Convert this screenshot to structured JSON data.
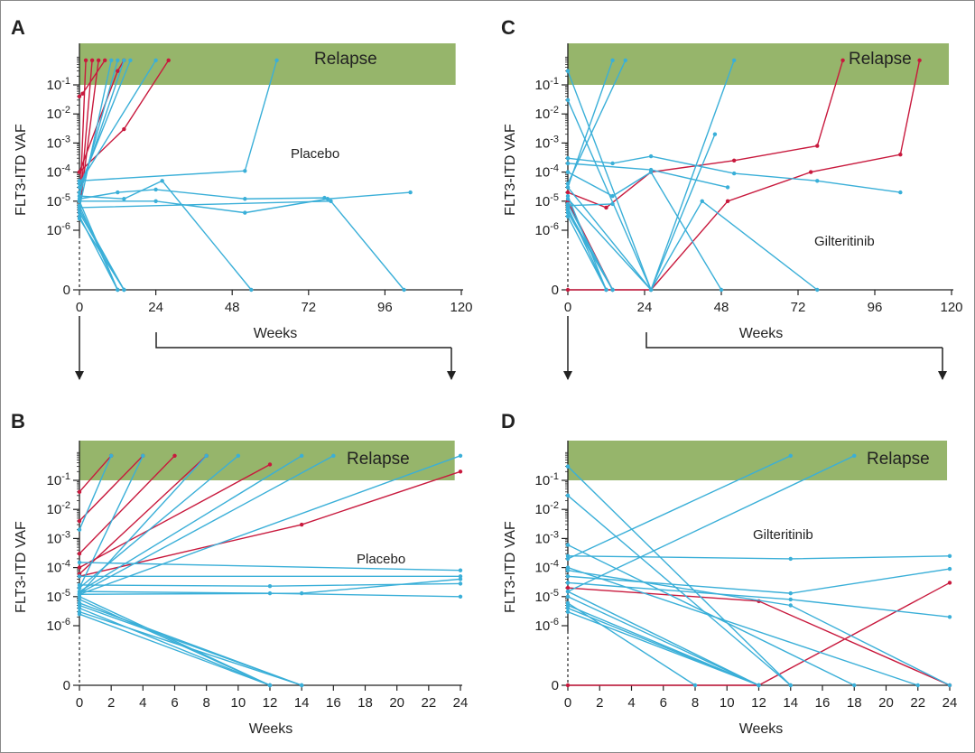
{
  "colors": {
    "placebo_line": "#3aafd8",
    "relapse_line": "#c8193d",
    "relapse_band": "#96b56b",
    "axis": "#222222"
  },
  "chart_data": [
    {
      "id": "A",
      "type": "line",
      "panel_label": "A",
      "arm": "Placebo",
      "band_label": "Relapse",
      "xlabel": "Weeks",
      "ylabel": "FLT3-ITD VAF",
      "xlim": [
        0,
        120
      ],
      "xticks": [
        "0",
        "24",
        "48",
        "72",
        "96",
        "120"
      ],
      "y_scale": "log10 with 0 at baseline",
      "yticks": [
        "0",
        "10-6",
        "10-5",
        "10-4",
        "10-3",
        "10-2",
        "10-1"
      ],
      "relapse_band": [
        0.1,
        1
      ],
      "series": [
        {
          "status": "relapse",
          "x": [
            0,
            2
          ],
          "y": [
            3e-06,
            0.7
          ]
        },
        {
          "status": "relapse",
          "x": [
            0,
            4
          ],
          "y": [
            4e-06,
            0.7
          ]
        },
        {
          "status": "relapse",
          "x": [
            0,
            6
          ],
          "y": [
            5e-06,
            0.7
          ]
        },
        {
          "status": "relapse",
          "x": [
            0,
            12,
            14
          ],
          "y": [
            0.0001,
            0.3,
            0.7
          ]
        },
        {
          "status": "relapse",
          "x": [
            0,
            14,
            28
          ],
          "y": [
            0.0001,
            0.003,
            0.7
          ]
        },
        {
          "status": "relapse",
          "x": [
            0,
            1,
            8
          ],
          "y": [
            0.04,
            0.05,
            0.7
          ]
        },
        {
          "status": "no relapse",
          "x": [
            0,
            10
          ],
          "y": [
            6e-06,
            0.7
          ]
        },
        {
          "status": "no relapse",
          "x": [
            0,
            12
          ],
          "y": [
            1.5e-05,
            0.7
          ]
        },
        {
          "status": "no relapse",
          "x": [
            0,
            14
          ],
          "y": [
            2e-05,
            0.7
          ]
        },
        {
          "status": "no relapse",
          "x": [
            0,
            16
          ],
          "y": [
            3e-05,
            0.7
          ]
        },
        {
          "status": "no relapse",
          "x": [
            0,
            24
          ],
          "y": [
            4e-05,
            0.7
          ]
        },
        {
          "status": "no relapse",
          "x": [
            0,
            52,
            62
          ],
          "y": [
            5e-05,
            0.00011,
            0.7
          ]
        },
        {
          "status": "no relapse",
          "x": [
            0,
            12,
            24,
            52,
            77
          ],
          "y": [
            1.2e-05,
            2e-05,
            2.5e-05,
            1.2e-05,
            1.3e-05
          ]
        },
        {
          "status": "no relapse",
          "x": [
            0,
            14,
            26,
            54
          ],
          "y": [
            1.5e-05,
            1.2e-05,
            5e-05,
            0
          ]
        },
        {
          "status": "no relapse",
          "x": [
            0,
            24,
            52,
            78,
            104
          ],
          "y": [
            1e-05,
            1e-05,
            4e-06,
            1.2e-05,
            2e-05
          ]
        },
        {
          "status": "no relapse",
          "x": [
            0,
            12
          ],
          "y": [
            1e-05,
            0
          ]
        },
        {
          "status": "no relapse",
          "x": [
            0,
            12
          ],
          "y": [
            7e-06,
            0
          ]
        },
        {
          "status": "no relapse",
          "x": [
            0,
            14
          ],
          "y": [
            5e-06,
            0
          ]
        },
        {
          "status": "no relapse",
          "x": [
            0,
            14
          ],
          "y": [
            4e-06,
            0
          ]
        },
        {
          "status": "no relapse",
          "x": [
            0,
            12
          ],
          "y": [
            3e-06,
            0
          ]
        },
        {
          "status": "no relapse",
          "x": [
            0,
            14
          ],
          "y": [
            2.5e-06,
            0
          ]
        },
        {
          "status": "no relapse",
          "x": [
            0,
            79,
            102
          ],
          "y": [
            6e-06,
            1e-05,
            0
          ]
        }
      ]
    },
    {
      "id": "B",
      "type": "line",
      "panel_label": "B",
      "arm": "Placebo",
      "band_label": "Relapse",
      "xlabel": "Weeks",
      "ylabel": "FLT3-ITD VAF",
      "xlim": [
        0,
        24
      ],
      "xticks": [
        "0",
        "2",
        "4",
        "6",
        "8",
        "10",
        "12",
        "14",
        "16",
        "18",
        "20",
        "22",
        "24"
      ],
      "y_scale": "log10 with 0 at baseline",
      "yticks": [
        "0",
        "10-6",
        "10-5",
        "10-4",
        "10-3",
        "10-2",
        "10-1"
      ],
      "relapse_band": [
        0.1,
        1
      ],
      "series": [
        {
          "status": "relapse",
          "x": [
            0,
            2
          ],
          "y": [
            0.04,
            0.7
          ]
        },
        {
          "status": "relapse",
          "x": [
            0,
            4
          ],
          "y": [
            0.004,
            0.7
          ]
        },
        {
          "status": "relapse",
          "x": [
            0,
            6
          ],
          "y": [
            0.0003,
            0.7
          ]
        },
        {
          "status": "relapse",
          "x": [
            0,
            8
          ],
          "y": [
            6e-05,
            0.7
          ]
        },
        {
          "status": "relapse",
          "x": [
            0,
            12
          ],
          "y": [
            0.0001,
            0.35
          ]
        },
        {
          "status": "relapse",
          "x": [
            0,
            14,
            24
          ],
          "y": [
            5e-05,
            0.003,
            0.2
          ]
        },
        {
          "status": "no relapse",
          "x": [
            0,
            2
          ],
          "y": [
            0.002,
            0.7
          ]
        },
        {
          "status": "no relapse",
          "x": [
            0,
            4
          ],
          "y": [
            2e-05,
            0.7
          ]
        },
        {
          "status": "no relapse",
          "x": [
            0,
            8
          ],
          "y": [
            1.2e-05,
            0.7
          ]
        },
        {
          "status": "no relapse",
          "x": [
            0,
            10
          ],
          "y": [
            2e-05,
            0.7
          ]
        },
        {
          "status": "no relapse",
          "x": [
            0,
            14
          ],
          "y": [
            1.5e-05,
            0.7
          ]
        },
        {
          "status": "no relapse",
          "x": [
            0,
            16
          ],
          "y": [
            1.3e-05,
            0.7
          ]
        },
        {
          "status": "no relapse",
          "x": [
            0,
            24
          ],
          "y": [
            1.2e-05,
            0.7
          ]
        },
        {
          "status": "no relapse",
          "x": [
            0,
            24
          ],
          "y": [
            0.00015,
            8e-05
          ]
        },
        {
          "status": "no relapse",
          "x": [
            0,
            24
          ],
          "y": [
            5e-05,
            5e-05
          ]
        },
        {
          "status": "no relapse",
          "x": [
            0,
            12,
            24
          ],
          "y": [
            2.5e-05,
            2.3e-05,
            2.8e-05
          ]
        },
        {
          "status": "no relapse",
          "x": [
            0,
            14,
            24
          ],
          "y": [
            1.2e-05,
            1.3e-05,
            4e-05
          ]
        },
        {
          "status": "no relapse",
          "x": [
            0,
            12,
            24
          ],
          "y": [
            1.5e-05,
            1.3e-05,
            1e-05
          ]
        },
        {
          "status": "no relapse",
          "x": [
            0,
            12
          ],
          "y": [
            1e-05,
            0
          ]
        },
        {
          "status": "no relapse",
          "x": [
            0,
            12
          ],
          "y": [
            8e-06,
            0
          ]
        },
        {
          "status": "no relapse",
          "x": [
            0,
            14
          ],
          "y": [
            6e-06,
            0
          ]
        },
        {
          "status": "no relapse",
          "x": [
            0,
            14
          ],
          "y": [
            5e-06,
            0
          ]
        },
        {
          "status": "no relapse",
          "x": [
            0,
            12
          ],
          "y": [
            4e-06,
            0
          ]
        },
        {
          "status": "no relapse",
          "x": [
            0,
            14
          ],
          "y": [
            3e-06,
            0
          ]
        },
        {
          "status": "no relapse",
          "x": [
            0,
            12
          ],
          "y": [
            2.5e-06,
            0
          ]
        }
      ]
    },
    {
      "id": "C",
      "type": "line",
      "panel_label": "C",
      "arm": "Gilteritinib",
      "band_label": "Relapse",
      "xlabel": "Weeks",
      "ylabel": "FLT3-ITD VAF",
      "xlim": [
        0,
        120
      ],
      "xticks": [
        "0",
        "24",
        "48",
        "72",
        "96",
        "120"
      ],
      "y_scale": "log10 with 0 at baseline",
      "yticks": [
        "0",
        "10-6",
        "10-5",
        "10-4",
        "10-3",
        "10-2",
        "10-1"
      ],
      "relapse_band": [
        0.1,
        1
      ],
      "series": [
        {
          "status": "relapse",
          "x": [
            0,
            12,
            26,
            52,
            78,
            86
          ],
          "y": [
            2e-05,
            6e-06,
            0.0001,
            0.00025,
            0.0008,
            0.7
          ]
        },
        {
          "status": "relapse",
          "x": [
            0,
            12,
            26,
            50,
            76,
            104,
            110
          ],
          "y": [
            0,
            0,
            0,
            1e-05,
            0.0001,
            0.0004,
            0.7
          ]
        },
        {
          "status": "relapse",
          "x": [
            0,
            14
          ],
          "y": [
            1e-05,
            0
          ]
        },
        {
          "status": "no relapse",
          "x": [
            0,
            14
          ],
          "y": [
            3e-05,
            0.7
          ]
        },
        {
          "status": "no relapse",
          "x": [
            0,
            18
          ],
          "y": [
            4e-05,
            0.7
          ]
        },
        {
          "status": "no relapse",
          "x": [
            0,
            26,
            52
          ],
          "y": [
            0.3,
            0,
            0.7
          ]
        },
        {
          "status": "no relapse",
          "x": [
            0,
            14,
            26,
            52,
            78,
            104
          ],
          "y": [
            0.0003,
            0.0002,
            0.00035,
            9e-05,
            5e-05,
            2e-05
          ]
        },
        {
          "status": "no relapse",
          "x": [
            0,
            26,
            50
          ],
          "y": [
            0.0002,
            0.00012,
            3e-05
          ]
        },
        {
          "status": "no relapse",
          "x": [
            0,
            14,
            26,
            48
          ],
          "y": [
            0.0001,
            1.5e-05,
            0.0001,
            0
          ]
        },
        {
          "status": "no relapse",
          "x": [
            0,
            26,
            46
          ],
          "y": [
            0.03,
            0,
            0.002
          ]
        },
        {
          "status": "no relapse",
          "x": [
            0,
            26,
            42,
            78
          ],
          "y": [
            3e-05,
            0,
            1e-05,
            0
          ]
        },
        {
          "status": "no relapse",
          "x": [
            0,
            12
          ],
          "y": [
            1.5e-05,
            0
          ]
        },
        {
          "status": "no relapse",
          "x": [
            0,
            14
          ],
          "y": [
            8e-06,
            0
          ]
        },
        {
          "status": "no relapse",
          "x": [
            0,
            12
          ],
          "y": [
            6e-06,
            0
          ]
        },
        {
          "status": "no relapse",
          "x": [
            0,
            14
          ],
          "y": [
            5e-06,
            0
          ]
        },
        {
          "status": "no relapse",
          "x": [
            0,
            14
          ],
          "y": [
            4e-06,
            0
          ]
        },
        {
          "status": "no relapse",
          "x": [
            0,
            12
          ],
          "y": [
            3e-06,
            0
          ]
        },
        {
          "status": "no relapse",
          "x": [
            0,
            26
          ],
          "y": [
            1.2e-05,
            0
          ]
        },
        {
          "status": "no relapse",
          "x": [
            0,
            14
          ],
          "y": [
            7e-06,
            8e-06
          ]
        }
      ]
    },
    {
      "id": "D",
      "type": "line",
      "panel_label": "D",
      "arm": "Gilteritinib",
      "band_label": "Relapse",
      "xlabel": "Weeks",
      "ylabel": "FLT3-ITD VAF",
      "xlim": [
        0,
        24
      ],
      "xticks": [
        "0",
        "2",
        "4",
        "6",
        "8",
        "10",
        "12",
        "14",
        "16",
        "18",
        "20",
        "22",
        "24"
      ],
      "y_scale": "log10 with 0 at baseline",
      "yticks": [
        "0",
        "10-6",
        "10-5",
        "10-4",
        "10-3",
        "10-2",
        "10-1"
      ],
      "relapse_band": [
        0.1,
        1
      ],
      "series": [
        {
          "status": "relapse",
          "x": [
            0,
            12,
            24
          ],
          "y": [
            2e-05,
            7e-06,
            0
          ]
        },
        {
          "status": "relapse",
          "x": [
            0,
            12,
            24
          ],
          "y": [
            0,
            0,
            3e-05
          ]
        },
        {
          "status": "no relapse",
          "x": [
            0,
            14
          ],
          "y": [
            0.0002,
            0.7
          ]
        },
        {
          "status": "no relapse",
          "x": [
            0,
            18
          ],
          "y": [
            1.5e-05,
            0.7
          ]
        },
        {
          "status": "no relapse",
          "x": [
            0,
            14
          ],
          "y": [
            0.3,
            0
          ]
        },
        {
          "status": "no relapse",
          "x": [
            0,
            14
          ],
          "y": [
            0.03,
            0
          ]
        },
        {
          "status": "no relapse",
          "x": [
            0,
            14,
            24
          ],
          "y": [
            0.00025,
            0.0002,
            0.00025
          ]
        },
        {
          "status": "no relapse",
          "x": [
            0,
            14,
            24
          ],
          "y": [
            5e-05,
            1.3e-05,
            9e-05
          ]
        },
        {
          "status": "no relapse",
          "x": [
            0,
            14,
            24
          ],
          "y": [
            3e-05,
            8e-06,
            2e-06
          ]
        },
        {
          "status": "no relapse",
          "x": [
            0,
            14,
            24
          ],
          "y": [
            8e-05,
            5e-06,
            0
          ]
        },
        {
          "status": "no relapse",
          "x": [
            0,
            18
          ],
          "y": [
            0.0006,
            0
          ]
        },
        {
          "status": "no relapse",
          "x": [
            0,
            22
          ],
          "y": [
            0.0001,
            0
          ]
        },
        {
          "status": "no relapse",
          "x": [
            0,
            12
          ],
          "y": [
            1.5e-05,
            0
          ]
        },
        {
          "status": "no relapse",
          "x": [
            0,
            12
          ],
          "y": [
            1e-05,
            0
          ]
        },
        {
          "status": "no relapse",
          "x": [
            0,
            8
          ],
          "y": [
            6e-06,
            0
          ]
        },
        {
          "status": "no relapse",
          "x": [
            0,
            12
          ],
          "y": [
            5e-06,
            0
          ]
        },
        {
          "status": "no relapse",
          "x": [
            0,
            12
          ],
          "y": [
            4e-06,
            0
          ]
        },
        {
          "status": "no relapse",
          "x": [
            0,
            12
          ],
          "y": [
            3e-06,
            0
          ]
        }
      ]
    }
  ]
}
